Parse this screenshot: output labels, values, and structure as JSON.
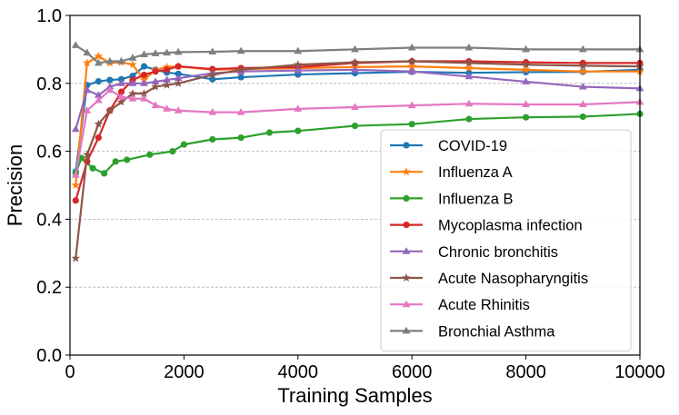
{
  "chart_data": {
    "type": "line",
    "title": "",
    "xlabel": "Training Samples",
    "ylabel": "Precision",
    "xlim": [
      0,
      10000
    ],
    "ylim": [
      0.0,
      1.0
    ],
    "xticks": [
      "0",
      "2000",
      "4000",
      "6000",
      "8000",
      "10000"
    ],
    "yticks": [
      "0.0",
      "0.2",
      "0.4",
      "0.6",
      "0.8",
      "1.0"
    ],
    "grid": "y-dashed",
    "legend_position": "lower-right",
    "series": [
      {
        "name": "COVID-19",
        "color": "#1f77b4",
        "marker": "circle",
        "x": [
          100,
          300,
          500,
          700,
          900,
          1100,
          1300,
          1500,
          1700,
          1900,
          2500,
          3000,
          4000,
          5000,
          6000,
          7000,
          8000,
          9000,
          10000
        ],
        "y": [
          0.54,
          0.795,
          0.806,
          0.81,
          0.812,
          0.822,
          0.85,
          0.84,
          0.832,
          0.828,
          0.812,
          0.818,
          0.826,
          0.83,
          0.834,
          0.831,
          0.833,
          0.834,
          0.84
        ]
      },
      {
        "name": "Influenza A",
        "color": "#ff7f0e",
        "marker": "star",
        "x": [
          100,
          300,
          500,
          700,
          900,
          1100,
          1300,
          1500,
          1700,
          1900,
          2500,
          3000,
          4000,
          5000,
          6000,
          7000,
          8000,
          9000,
          10000
        ],
        "y": [
          0.5,
          0.86,
          0.88,
          0.86,
          0.862,
          0.855,
          0.81,
          0.84,
          0.848,
          0.85,
          0.84,
          0.842,
          0.845,
          0.848,
          0.85,
          0.845,
          0.84,
          0.835,
          0.835
        ]
      },
      {
        "name": "Influenza B",
        "color": "#2ca02c",
        "marker": "circle",
        "x": [
          100,
          200,
          400,
          600,
          800,
          1000,
          1400,
          1800,
          2000,
          2500,
          3000,
          3500,
          4000,
          5000,
          6000,
          7000,
          8000,
          9000,
          10000
        ],
        "y": [
          0.535,
          0.58,
          0.55,
          0.535,
          0.57,
          0.575,
          0.59,
          0.6,
          0.62,
          0.635,
          0.64,
          0.655,
          0.66,
          0.675,
          0.68,
          0.695,
          0.7,
          0.702,
          0.71
        ]
      },
      {
        "name": "Mycoplasma infection",
        "color": "#d62728",
        "marker": "circle",
        "x": [
          100,
          300,
          500,
          700,
          900,
          1100,
          1300,
          1500,
          1700,
          1900,
          2500,
          3000,
          4000,
          5000,
          6000,
          7000,
          8000,
          9000,
          10000
        ],
        "y": [
          0.455,
          0.57,
          0.64,
          0.72,
          0.775,
          0.81,
          0.825,
          0.835,
          0.84,
          0.85,
          0.842,
          0.845,
          0.848,
          0.86,
          0.865,
          0.865,
          0.862,
          0.86,
          0.86
        ]
      },
      {
        "name": "Chronic bronchitis",
        "color": "#9467bd",
        "marker": "triangle",
        "x": [
          100,
          300,
          500,
          700,
          900,
          1100,
          1300,
          1500,
          1700,
          1900,
          2500,
          3000,
          4000,
          5000,
          6000,
          7000,
          8000,
          9000,
          10000
        ],
        "y": [
          0.665,
          0.78,
          0.765,
          0.79,
          0.8,
          0.8,
          0.8,
          0.805,
          0.81,
          0.815,
          0.83,
          0.835,
          0.838,
          0.84,
          0.835,
          0.82,
          0.805,
          0.79,
          0.785
        ]
      },
      {
        "name": "Acute Nasopharyngitis",
        "color": "#8c564b",
        "marker": "star",
        "x": [
          100,
          300,
          500,
          700,
          900,
          1100,
          1300,
          1500,
          1700,
          1900,
          2500,
          3000,
          4000,
          5000,
          6000,
          7000,
          8000,
          9000,
          10000
        ],
        "y": [
          0.285,
          0.59,
          0.68,
          0.72,
          0.745,
          0.77,
          0.77,
          0.79,
          0.795,
          0.8,
          0.825,
          0.84,
          0.855,
          0.862,
          0.865,
          0.86,
          0.855,
          0.852,
          0.85
        ]
      },
      {
        "name": "Acute Rhinitis",
        "color": "#e377c2",
        "marker": "triangle",
        "x": [
          100,
          300,
          500,
          700,
          900,
          1100,
          1300,
          1500,
          1700,
          1900,
          2500,
          3000,
          4000,
          5000,
          6000,
          7000,
          8000,
          9000,
          10000
        ],
        "y": [
          0.53,
          0.72,
          0.75,
          0.78,
          0.76,
          0.755,
          0.755,
          0.735,
          0.725,
          0.72,
          0.715,
          0.715,
          0.725,
          0.73,
          0.735,
          0.74,
          0.738,
          0.738,
          0.745
        ]
      },
      {
        "name": "Bronchial Asthma",
        "color": "#7f7f7f",
        "marker": "triangle",
        "x": [
          100,
          300,
          500,
          700,
          900,
          1100,
          1300,
          1500,
          1700,
          1900,
          2500,
          3000,
          4000,
          5000,
          6000,
          7000,
          8000,
          9000,
          10000
        ],
        "y": [
          0.912,
          0.89,
          0.86,
          0.865,
          0.865,
          0.875,
          0.885,
          0.888,
          0.89,
          0.892,
          0.893,
          0.895,
          0.895,
          0.9,
          0.905,
          0.905,
          0.9,
          0.9,
          0.9
        ]
      }
    ]
  }
}
